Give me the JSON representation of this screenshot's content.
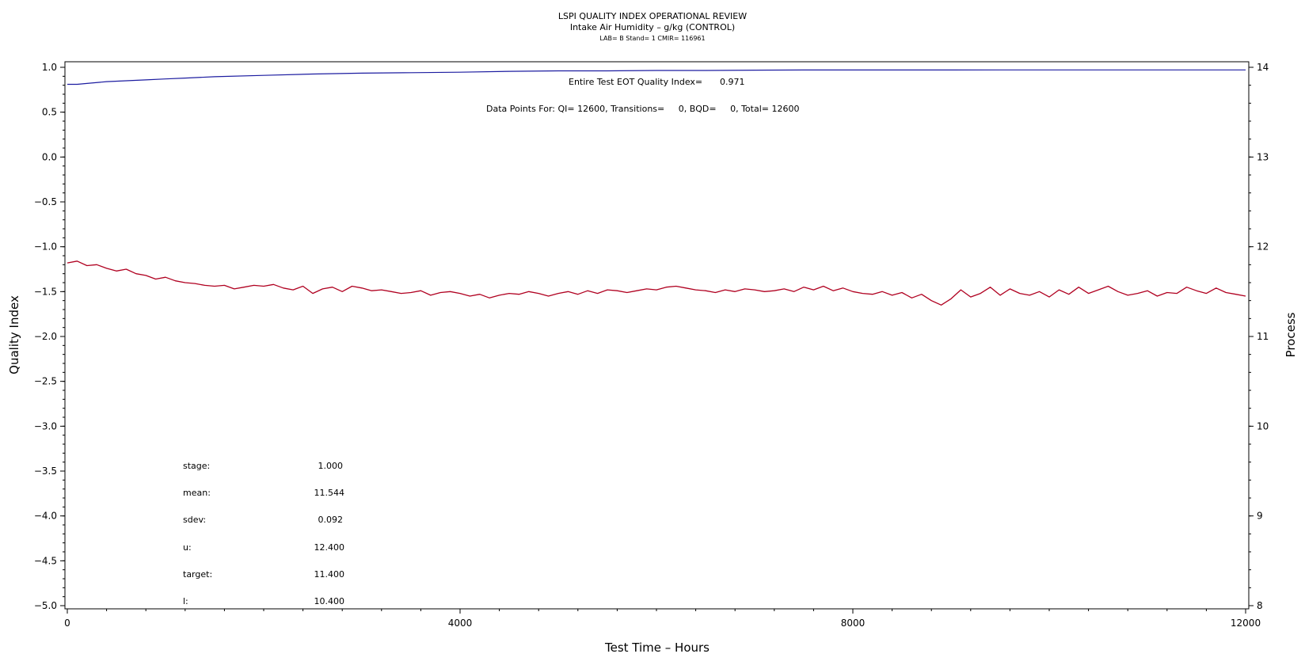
{
  "chart_data": {
    "type": "line",
    "title": "LSPI QUALITY INDEX OPERATIONAL REVIEW",
    "subtitle": "Intake Air Humidity – g/kg (CONTROL)",
    "info_line": "LAB= B Stand= 1 CMIR= 116961",
    "xlabel": "Test Time – Hours",
    "ylabel_left": "Quality Index",
    "ylabel_right": "Process",
    "xlim": [
      0,
      12000
    ],
    "ylim_left": [
      -5.0,
      1.0
    ],
    "ylim_right": [
      8,
      14
    ],
    "x_ticks": [
      "0",
      "4000",
      "8000",
      "12000"
    ],
    "y_left_ticks": [
      "1.0",
      "0.5",
      "0.0",
      "−0.5",
      "−1.0",
      "−1.5",
      "−2.0",
      "−2.5",
      "−3.0",
      "−3.5",
      "−4.0",
      "−4.5",
      "−5.0"
    ],
    "y_right_ticks": [
      "14",
      "13",
      "12",
      "11",
      "10",
      "9",
      "8"
    ],
    "annotations": {
      "eot_label": "Entire Test EOT Quality Index=",
      "eot_value": "0.971",
      "points_line": "Data Points For: QI= 12600, Transitions=     0, BQD=     0, Total= 12600"
    },
    "stats": [
      {
        "label": "stage:",
        "value": "1.000"
      },
      {
        "label": "mean:",
        "value": "11.544"
      },
      {
        "label": "sdev:",
        "value": "0.092"
      },
      {
        "label": "u:",
        "value": "12.400"
      },
      {
        "label": "target:",
        "value": "11.400"
      },
      {
        "label": "l:",
        "value": "10.400"
      }
    ],
    "series": [
      {
        "axis": "left",
        "color": "#1c1ca0",
        "x": [
          0,
          100,
          200,
          400,
          600,
          800,
          1000,
          1200,
          1500,
          2000,
          2500,
          3000,
          3500,
          4000,
          4500,
          5000,
          5500,
          6000,
          6500,
          7000,
          7500,
          8000,
          8500,
          9000,
          9500,
          10000,
          10500,
          11000,
          11500,
          12000
        ],
        "values": [
          0.81,
          0.81,
          0.82,
          0.84,
          0.85,
          0.86,
          0.87,
          0.88,
          0.895,
          0.91,
          0.925,
          0.935,
          0.94,
          0.945,
          0.955,
          0.96,
          0.96,
          0.965,
          0.965,
          0.968,
          0.97,
          0.97,
          0.97,
          0.97,
          0.971,
          0.971,
          0.971,
          0.971,
          0.971,
          0.971
        ]
      },
      {
        "axis": "right",
        "color": "#b00020",
        "x": [
          0,
          100,
          200,
          300,
          400,
          500,
          600,
          700,
          800,
          900,
          1000,
          1100,
          1200,
          1300,
          1400,
          1500,
          1600,
          1700,
          1800,
          1900,
          2000,
          2100,
          2200,
          2300,
          2400,
          2500,
          2600,
          2700,
          2800,
          2900,
          3000,
          3100,
          3200,
          3300,
          3400,
          3500,
          3600,
          3700,
          3800,
          3900,
          4000,
          4100,
          4200,
          4300,
          4400,
          4500,
          4600,
          4700,
          4800,
          4900,
          5000,
          5100,
          5200,
          5300,
          5400,
          5500,
          5600,
          5700,
          5800,
          5900,
          6000,
          6100,
          6200,
          6300,
          6400,
          6500,
          6600,
          6700,
          6800,
          6900,
          7000,
          7100,
          7200,
          7300,
          7400,
          7500,
          7600,
          7700,
          7800,
          7900,
          8000,
          8100,
          8200,
          8300,
          8400,
          8500,
          8600,
          8700,
          8800,
          8900,
          9000,
          9100,
          9200,
          9300,
          9400,
          9500,
          9600,
          9700,
          9800,
          9900,
          10000,
          10100,
          10200,
          10300,
          10400,
          10500,
          10600,
          10700,
          10800,
          10900,
          11000,
          11100,
          11200,
          11300,
          11400,
          11500,
          11600,
          11700,
          11800,
          11900,
          12000
        ],
        "values": [
          11.82,
          11.84,
          11.79,
          11.8,
          11.76,
          11.73,
          11.75,
          11.7,
          11.68,
          11.64,
          11.66,
          11.62,
          11.6,
          11.59,
          11.57,
          11.56,
          11.57,
          11.53,
          11.55,
          11.57,
          11.56,
          11.58,
          11.54,
          11.52,
          11.56,
          11.48,
          11.53,
          11.55,
          11.5,
          11.56,
          11.54,
          11.51,
          11.52,
          11.5,
          11.48,
          11.49,
          11.51,
          11.46,
          11.49,
          11.5,
          11.48,
          11.45,
          11.47,
          11.43,
          11.46,
          11.48,
          11.47,
          11.5,
          11.48,
          11.45,
          11.48,
          11.5,
          11.47,
          11.51,
          11.48,
          11.52,
          11.51,
          11.49,
          11.51,
          11.53,
          11.52,
          11.55,
          11.56,
          11.54,
          11.52,
          11.51,
          11.49,
          11.52,
          11.5,
          11.53,
          11.52,
          11.5,
          11.51,
          11.53,
          11.5,
          11.55,
          11.52,
          11.56,
          11.51,
          11.54,
          11.5,
          11.48,
          11.47,
          11.5,
          11.46,
          11.49,
          11.43,
          11.47,
          11.4,
          11.35,
          11.42,
          11.52,
          11.44,
          11.48,
          11.55,
          11.46,
          11.53,
          11.48,
          11.46,
          11.5,
          11.44,
          11.52,
          11.47,
          11.55,
          11.48,
          11.52,
          11.56,
          11.5,
          11.46,
          11.48,
          11.51,
          11.45,
          11.49,
          11.48,
          11.55,
          11.51,
          11.48,
          11.54,
          11.49,
          11.47,
          11.45
        ]
      }
    ]
  }
}
